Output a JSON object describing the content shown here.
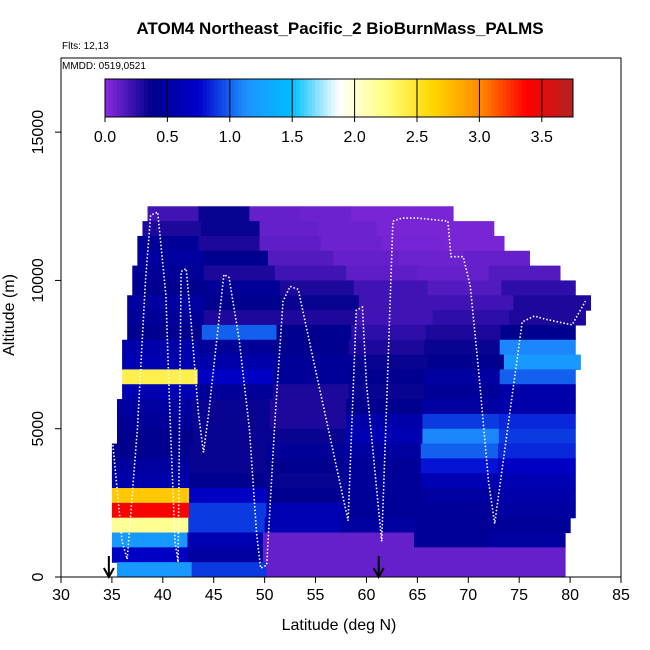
{
  "title": "ATOM4 Northeast_Pacific_2 BioBurnMass_PALMS",
  "flights_label": "Flts: 12,13",
  "date_label": "MMDD: 0519,0521",
  "colors": {
    "ramp": [
      "#8a2be2",
      "#00008b",
      "#0000cd",
      "#1e90ff",
      "#00bfff",
      "#ffffff",
      "#ffff80",
      "#ffd700",
      "#ff8c00",
      "#ff0000",
      "#b22222"
    ],
    "track": "#ffffff",
    "arrow": "#000000"
  },
  "chart_data": {
    "type": "heatmap",
    "title": "ATOM4 Northeast_Pacific_2 BioBurnMass_PALMS",
    "xlabel": "Latitude (deg N)",
    "ylabel": "Altitude (m)",
    "xlim": [
      30,
      85
    ],
    "ylim": [
      0,
      17500
    ],
    "x_ticks": [
      30,
      35,
      40,
      45,
      50,
      55,
      60,
      65,
      70,
      75,
      80,
      85
    ],
    "y_ticks": [
      0,
      5000,
      10000,
      15000
    ],
    "colorbar": {
      "range": [
        0.0,
        3.75
      ],
      "ticks": [
        0.0,
        0.5,
        1.0,
        1.5,
        2.0,
        2.5,
        3.0,
        3.5
      ],
      "tick_labels": [
        "0.0",
        "0.5",
        "1.0",
        "1.5",
        "2.0",
        "2.5",
        "3.0",
        "3.5"
      ]
    },
    "grid": false,
    "layers": [
      {
        "alt": [
          12000,
          12500
        ],
        "lat_start": 38.5,
        "lat_end": 68.5,
        "values": [
          0.2,
          0.35,
          0.1,
          0.08,
          0.05,
          0.05
        ]
      },
      {
        "alt": [
          11500,
          12000
        ],
        "lat_start": 38.0,
        "lat_end": 72.5,
        "values": [
          0.3,
          0.35,
          0.1,
          0.08,
          0.05,
          0.05
        ]
      },
      {
        "alt": [
          11000,
          11500
        ],
        "lat_start": 37.5,
        "lat_end": 73.5,
        "values": [
          0.45,
          0.3,
          0.12,
          0.08,
          0.06,
          0.05
        ]
      },
      {
        "alt": [
          10500,
          11000
        ],
        "lat_start": 37.5,
        "lat_end": 76.0,
        "values": [
          0.5,
          0.4,
          0.15,
          0.1,
          0.08,
          0.1
        ]
      },
      {
        "alt": [
          10000,
          10500
        ],
        "lat_start": 37.0,
        "lat_end": 79.0,
        "values": [
          0.45,
          0.3,
          0.2,
          0.12,
          0.1,
          0.15
        ]
      },
      {
        "alt": [
          9500,
          10000
        ],
        "lat_start": 37.0,
        "lat_end": 80.5,
        "values": [
          0.4,
          0.45,
          0.3,
          0.2,
          0.15,
          0.25
        ]
      },
      {
        "alt": [
          9000,
          9500
        ],
        "lat_start": 36.5,
        "lat_end": 82.0,
        "values": [
          0.5,
          0.4,
          0.35,
          0.2,
          0.2,
          0.3
        ]
      },
      {
        "alt": [
          8500,
          9000
        ],
        "lat_start": 36.5,
        "lat_end": 81.5,
        "values": [
          0.45,
          0.3,
          0.3,
          0.2,
          0.25,
          0.3
        ]
      },
      {
        "alt": [
          8000,
          8500
        ],
        "lat_start": 36.5,
        "lat_end": 80.5,
        "values": [
          0.4,
          1.0,
          0.4,
          0.25,
          0.3,
          0.4
        ]
      },
      {
        "alt": [
          7500,
          8000
        ],
        "lat_start": 36.0,
        "lat_end": 80.5,
        "values": [
          0.55,
          0.45,
          0.4,
          0.3,
          0.35,
          1.1
        ]
      },
      {
        "alt": [
          7000,
          7500
        ],
        "lat_start": 36.0,
        "lat_end": 81.0,
        "values": [
          0.6,
          0.55,
          0.45,
          0.35,
          0.4,
          1.2
        ]
      },
      {
        "alt": [
          6500,
          7000
        ],
        "lat_start": 36.0,
        "lat_end": 80.5,
        "values": [
          2.4,
          0.7,
          0.45,
          0.4,
          0.5,
          1.0
        ]
      },
      {
        "alt": [
          6000,
          6500
        ],
        "lat_start": 36.0,
        "lat_end": 80.5,
        "values": [
          0.6,
          0.45,
          0.3,
          0.35,
          0.45,
          0.55
        ]
      },
      {
        "alt": [
          5500,
          6000
        ],
        "lat_start": 35.5,
        "lat_end": 80.5,
        "values": [
          0.5,
          0.35,
          0.3,
          0.4,
          0.5,
          0.55
        ]
      },
      {
        "alt": [
          5000,
          5500
        ],
        "lat_start": 35.5,
        "lat_end": 80.5,
        "values": [
          0.45,
          0.35,
          0.3,
          0.55,
          0.9,
          0.85
        ]
      },
      {
        "alt": [
          4500,
          5000
        ],
        "lat_start": 35.5,
        "lat_end": 80.5,
        "values": [
          0.4,
          0.35,
          0.35,
          0.6,
          1.1,
          0.9
        ]
      },
      {
        "alt": [
          4000,
          4500
        ],
        "lat_start": 35.0,
        "lat_end": 80.5,
        "values": [
          0.4,
          0.35,
          0.45,
          0.5,
          1.0,
          0.85
        ]
      },
      {
        "alt": [
          3500,
          4000
        ],
        "lat_start": 35.0,
        "lat_end": 80.5,
        "values": [
          0.5,
          0.35,
          0.4,
          0.45,
          0.8,
          0.7
        ]
      },
      {
        "alt": [
          3000,
          3500
        ],
        "lat_start": 35.0,
        "lat_end": 80.5,
        "values": [
          0.55,
          0.4,
          0.35,
          0.45,
          0.6,
          0.6
        ]
      },
      {
        "alt": [
          2500,
          3000
        ],
        "lat_start": 35.0,
        "lat_end": 80.5,
        "values": [
          2.7,
          0.7,
          0.4,
          0.45,
          0.5,
          0.55
        ]
      },
      {
        "alt": [
          2000,
          2500
        ],
        "lat_start": 35.0,
        "lat_end": 80.5,
        "values": [
          3.4,
          0.9,
          0.6,
          0.45,
          0.45,
          0.5
        ]
      },
      {
        "alt": [
          1500,
          2000
        ],
        "lat_start": 35.0,
        "lat_end": 80.0,
        "values": [
          2.2,
          0.9,
          0.6,
          0.5,
          0.45,
          0.45
        ]
      },
      {
        "alt": [
          1000,
          1500
        ],
        "lat_start": 35.0,
        "lat_end": 79.5,
        "values": [
          1.2,
          0.6,
          0.1,
          0.1,
          0.45,
          0.5
        ]
      },
      {
        "alt": [
          500,
          1000
        ],
        "lat_start": 35.0,
        "lat_end": 79.5,
        "values": [
          0.7,
          0.5,
          0.1,
          0.1,
          0.1,
          0.1
        ]
      },
      {
        "alt": [
          0,
          500
        ],
        "lat_start": 35.5,
        "lat_end": 79.5,
        "values": [
          1.2,
          0.9,
          0.1,
          0.1,
          0.1,
          0.1
        ]
      }
    ],
    "flight_track": [
      [
        35,
        4800
      ],
      [
        35.5,
        3000
      ],
      [
        36,
        1200
      ],
      [
        36.5,
        600
      ],
      [
        37.5,
        5000
      ],
      [
        38.3,
        10000
      ],
      [
        38.8,
        12200
      ],
      [
        39.5,
        12300
      ],
      [
        40.3,
        9500
      ],
      [
        40.7,
        5500
      ],
      [
        41.2,
        1200
      ],
      [
        41.5,
        500
      ],
      [
        41.8,
        10300
      ],
      [
        42.3,
        10400
      ],
      [
        42.8,
        8500
      ],
      [
        43.5,
        5500
      ],
      [
        44,
        4200
      ],
      [
        44.5,
        5500
      ],
      [
        46,
        10200
      ],
      [
        46.5,
        10100
      ],
      [
        47.5,
        8000
      ],
      [
        48.5,
        5000
      ],
      [
        49.2,
        1500
      ],
      [
        49.6,
        300
      ],
      [
        50.2,
        400
      ],
      [
        51,
        5200
      ],
      [
        51.8,
        9300
      ],
      [
        52.5,
        9800
      ],
      [
        53.3,
        9700
      ],
      [
        53.8,
        8900
      ],
      [
        58.2,
        1900
      ],
      [
        59,
        9000
      ],
      [
        59.6,
        9100
      ],
      [
        60,
        6500
      ],
      [
        61.5,
        1200
      ],
      [
        62,
        6000
      ],
      [
        62.6,
        12000
      ],
      [
        63.5,
        12100
      ],
      [
        65,
        12100
      ],
      [
        68,
        12000
      ],
      [
        68.3,
        10800
      ],
      [
        69.5,
        10800
      ],
      [
        70.2,
        9800
      ],
      [
        71,
        7000
      ],
      [
        72,
        3200
      ],
      [
        72.6,
        1800
      ],
      [
        75.3,
        8600
      ],
      [
        76.5,
        8800
      ],
      [
        77.5,
        8700
      ],
      [
        80.2,
        8500
      ],
      [
        81.5,
        9300
      ]
    ],
    "markers": [
      {
        "type": "arrow",
        "lat": 34.7
      },
      {
        "type": "arrow",
        "lat": 61.2
      }
    ]
  }
}
